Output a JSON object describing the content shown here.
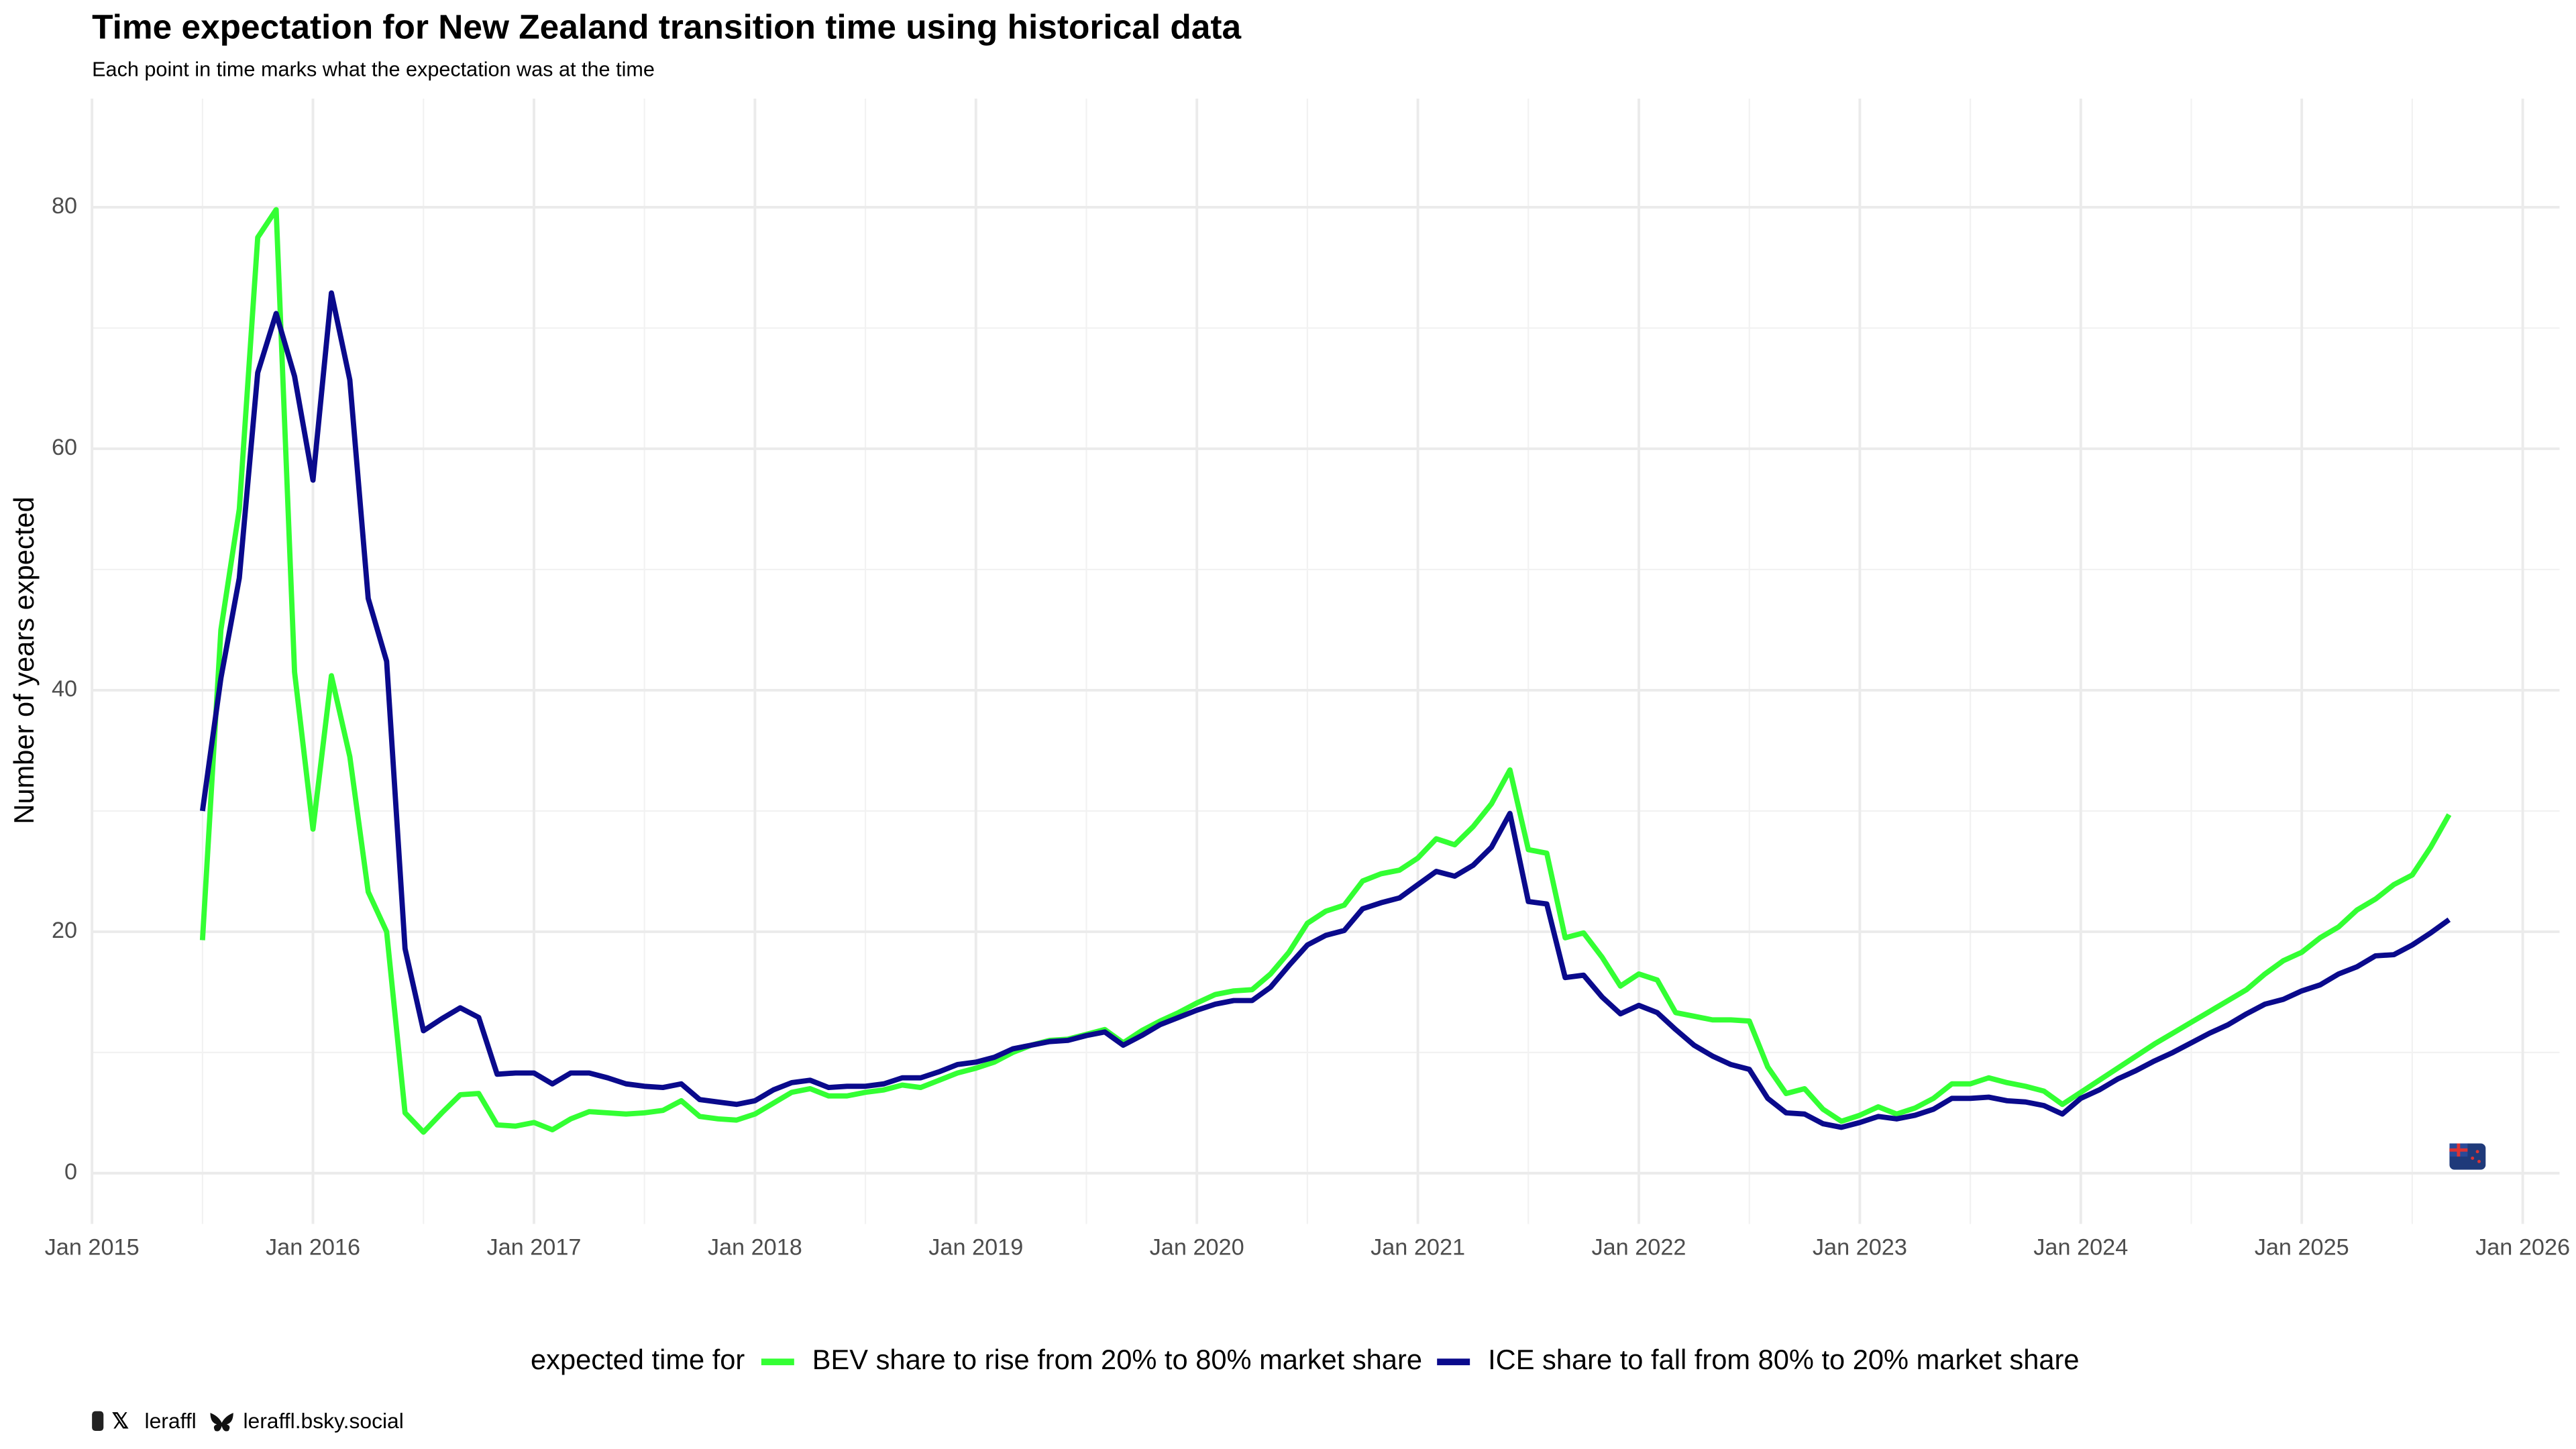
{
  "chart_data": {
    "type": "line",
    "title": "Time expectation for New Zealand transition time using historical data",
    "subtitle": "Each point in time marks what the expectation was at the time",
    "y_label": "Number of years expected",
    "legend_title": "expected time for",
    "legend": "bottom",
    "grid": true,
    "x": [
      "2015-07",
      "2015-08",
      "2015-09",
      "2015-10",
      "2015-11",
      "2015-12",
      "2016-01",
      "2016-02",
      "2016-03",
      "2016-04",
      "2016-05",
      "2016-06",
      "2016-07",
      "2016-08",
      "2016-09",
      "2016-10",
      "2016-11",
      "2016-12",
      "2017-01",
      "2017-02",
      "2017-03",
      "2017-04",
      "2017-05",
      "2017-06",
      "2017-07",
      "2017-08",
      "2017-09",
      "2017-10",
      "2017-11",
      "2017-12",
      "2018-01",
      "2018-02",
      "2018-03",
      "2018-04",
      "2018-05",
      "2018-06",
      "2018-07",
      "2018-08",
      "2018-09",
      "2018-10",
      "2018-11",
      "2018-12",
      "2019-01",
      "2019-02",
      "2019-03",
      "2019-04",
      "2019-05",
      "2019-06",
      "2019-07",
      "2019-08",
      "2019-09",
      "2019-10",
      "2019-11",
      "2019-12",
      "2020-01",
      "2020-02",
      "2020-03",
      "2020-04",
      "2020-05",
      "2020-06",
      "2020-07",
      "2020-08",
      "2020-09",
      "2020-10",
      "2020-11",
      "2020-12",
      "2021-01",
      "2021-02",
      "2021-03",
      "2021-04",
      "2021-05",
      "2021-06",
      "2021-07",
      "2021-08",
      "2021-09",
      "2021-10",
      "2021-11",
      "2021-12",
      "2022-01",
      "2022-02",
      "2022-03",
      "2022-04",
      "2022-05",
      "2022-06",
      "2022-07",
      "2022-08",
      "2022-09",
      "2022-10",
      "2022-11",
      "2022-12",
      "2023-01",
      "2023-02",
      "2023-03",
      "2023-04",
      "2023-05",
      "2023-06",
      "2023-07",
      "2023-08",
      "2023-09",
      "2023-10",
      "2023-11",
      "2023-12",
      "2024-01",
      "2024-02",
      "2024-03",
      "2024-04",
      "2024-05",
      "2024-06",
      "2024-07",
      "2024-08",
      "2024-09",
      "2024-10",
      "2024-11",
      "2024-12",
      "2025-01",
      "2025-02",
      "2025-03",
      "2025-04",
      "2025-05",
      "2025-06",
      "2025-07",
      "2025-08",
      "2025-09"
    ],
    "series": [
      {
        "name": "BEV share to rise from 20% to 80% market share",
        "color": "#33ff33",
        "values": [
          19.3,
          45,
          55,
          77.5,
          79.8,
          41.5,
          28.5,
          41.2,
          34.5,
          23.3,
          20,
          5,
          3.4,
          5,
          6.5,
          6.6,
          4,
          3.9,
          4.2,
          3.6,
          4.5,
          5.1,
          5,
          4.9,
          5,
          5.2,
          6,
          4.7,
          4.5,
          4.4,
          4.9,
          5.8,
          6.7,
          7,
          6.4,
          6.4,
          6.7,
          6.9,
          7.3,
          7.1,
          7.7,
          8.3,
          8.7,
          9.2,
          10,
          10.6,
          11,
          11.1,
          11.5,
          11.9,
          10.8,
          11.8,
          12.6,
          13.3,
          14.1,
          14.8,
          15.1,
          15.2,
          16.5,
          18.3,
          20.7,
          21.7,
          22.2,
          24.2,
          24.8,
          25.1,
          26.1,
          27.7,
          27.2,
          28.7,
          30.6,
          33.4,
          26.8,
          26.5,
          19.5,
          19.9,
          17.9,
          15.5,
          16.5,
          16,
          13.3,
          13,
          12.7,
          12.7,
          12.6,
          8.8,
          6.6,
          7,
          5.3,
          4.3,
          4.8,
          5.5,
          4.9,
          5.4,
          6.2,
          7.4,
          7.4,
          7.9,
          7.5,
          7.2,
          6.8,
          5.7,
          6.7,
          7.7,
          8.7,
          9.7,
          10.7,
          11.6,
          12.5,
          13.4,
          14.3,
          15.2,
          16.5,
          17.6,
          18.3,
          19.5,
          20.4,
          21.8,
          22.7,
          23.9,
          24.7,
          27,
          29.7
        ]
      },
      {
        "name": "ICE share to fall from 80% to 20% market share",
        "color": "#0a0a8c",
        "values": [
          30,
          41,
          49.3,
          66.3,
          71.2,
          66,
          57.4,
          72.9,
          65.7,
          47.6,
          42.4,
          18.6,
          11.8,
          12.8,
          13.7,
          12.9,
          8.2,
          8.3,
          8.3,
          7.4,
          8.3,
          8.3,
          7.9,
          7.4,
          7.2,
          7.1,
          7.4,
          6.1,
          5.9,
          5.7,
          6,
          6.9,
          7.5,
          7.7,
          7.1,
          7.2,
          7.2,
          7.4,
          7.9,
          7.9,
          8.4,
          9,
          9.2,
          9.6,
          10.3,
          10.6,
          10.9,
          11,
          11.4,
          11.7,
          10.6,
          11.4,
          12.3,
          12.9,
          13.5,
          14,
          14.3,
          14.3,
          15.4,
          17.2,
          18.9,
          19.7,
          20.1,
          21.9,
          22.4,
          22.8,
          23.9,
          25,
          24.6,
          25.5,
          27,
          29.8,
          22.5,
          22.3,
          16.2,
          16.4,
          14.6,
          13.2,
          13.9,
          13.3,
          11.9,
          10.6,
          9.7,
          9,
          8.6,
          6.2,
          5,
          4.9,
          4.1,
          3.8,
          4.2,
          4.7,
          4.5,
          4.8,
          5.3,
          6.2,
          6.2,
          6.3,
          6,
          5.9,
          5.6,
          4.9,
          6.2,
          6.9,
          7.8,
          8.5,
          9.3,
          10,
          10.8,
          11.6,
          12.3,
          13.2,
          14,
          14.4,
          15.1,
          15.6,
          16.5,
          17.1,
          18,
          18.1,
          18.9,
          19.9,
          21
        ]
      }
    ],
    "xlim": [
      "2015-01",
      "2026-03"
    ],
    "xticks": [
      {
        "value": "2015-01",
        "label": "Jan 2015"
      },
      {
        "value": "2016-01",
        "label": "Jan 2016"
      },
      {
        "value": "2017-01",
        "label": "Jan 2017"
      },
      {
        "value": "2018-01",
        "label": "Jan 2018"
      },
      {
        "value": "2019-01",
        "label": "Jan 2019"
      },
      {
        "value": "2020-01",
        "label": "Jan 2020"
      },
      {
        "value": "2021-01",
        "label": "Jan 2021"
      },
      {
        "value": "2022-01",
        "label": "Jan 2022"
      },
      {
        "value": "2023-01",
        "label": "Jan 2023"
      },
      {
        "value": "2024-01",
        "label": "Jan 2024"
      },
      {
        "value": "2025-01",
        "label": "Jan 2025"
      },
      {
        "value": "2026-01",
        "label": "Jan 2026"
      }
    ],
    "xminor": [
      "2015-07",
      "2016-07",
      "2017-07",
      "2018-07",
      "2019-07",
      "2020-07",
      "2021-07",
      "2022-07",
      "2023-07",
      "2024-07",
      "2025-07"
    ],
    "ylim": [
      -4.2,
      89
    ],
    "yticks": [
      0,
      20,
      40,
      60,
      80
    ],
    "yminor": [
      10,
      30,
      50,
      70
    ],
    "footer": [
      "leraffl",
      "leraffl.bsky.social"
    ]
  }
}
